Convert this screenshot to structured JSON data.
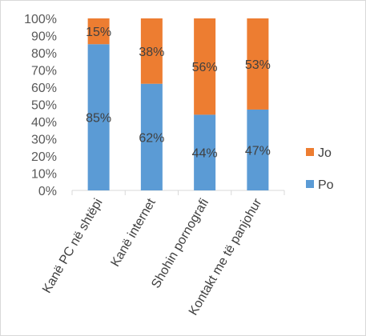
{
  "chart_data": {
    "type": "bar",
    "stacked": true,
    "percent_stacked": true,
    "categories": [
      "Kanë PC në shtëpi",
      "Kanë internet",
      "Shohin pornografi",
      "Kontakt me të panjohur"
    ],
    "series": [
      {
        "name": "Po",
        "values": [
          85,
          62,
          44,
          47
        ],
        "labels": [
          "85%",
          "62%",
          "44%",
          "47%"
        ],
        "color": "#5b9bd5"
      },
      {
        "name": "Jo",
        "values": [
          15,
          38,
          56,
          53
        ],
        "labels": [
          "15%",
          "38%",
          "56%",
          "53%"
        ],
        "color": "#ed7d31"
      }
    ],
    "yticks": [
      "0%",
      "10%",
      "20%",
      "30%",
      "40%",
      "50%",
      "60%",
      "70%",
      "80%",
      "90%",
      "100%"
    ],
    "ylim": [
      0,
      100
    ],
    "grid": false,
    "legend": {
      "position": "right",
      "entries": [
        "Jo",
        "Po"
      ]
    }
  }
}
